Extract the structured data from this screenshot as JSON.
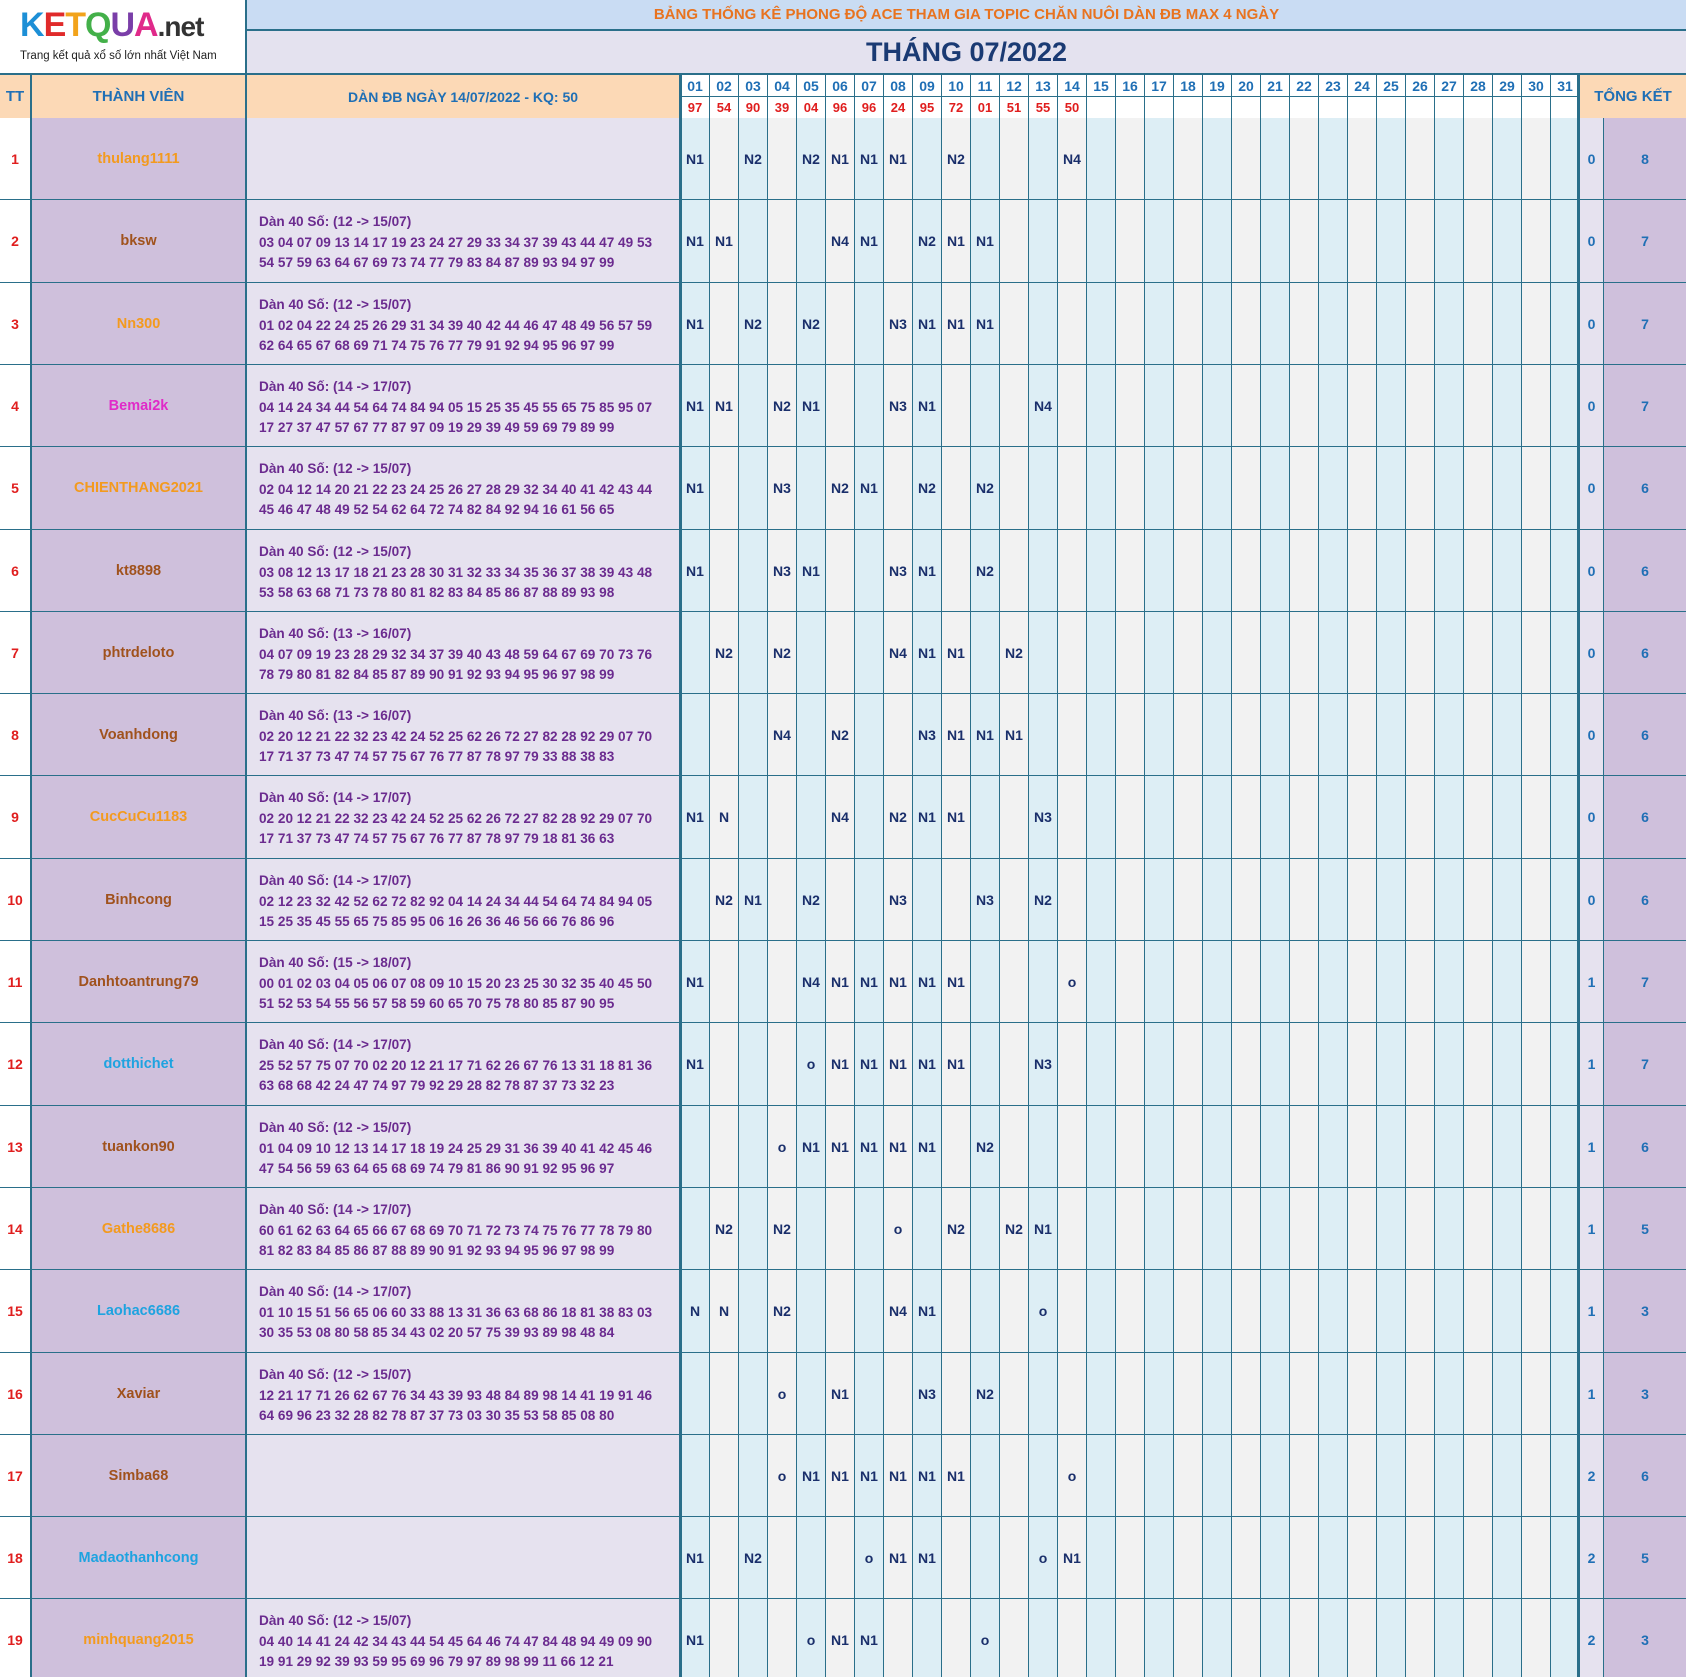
{
  "logo": {
    "letters": [
      "K",
      "E",
      "T",
      "Q",
      "U",
      "A"
    ],
    "letter_colors": [
      "#1d8fd6",
      "#e02a2a",
      "#f2a31b",
      "#43b049",
      "#7a3ea8",
      "#e02a8a"
    ],
    "suffix": ".net",
    "tagline": "Trang kết quả xổ số lớn nhất Việt Nam"
  },
  "title": "BẢNG THỐNG KÊ PHONG ĐỘ ACE THAM GIA TOPIC CHĂN NUÔI DÀN ĐB MAX 4 NGÀY",
  "month": "THÁNG 07/2022",
  "headers": {
    "tt": "TT",
    "member": "THÀNH VIÊN",
    "dan": "DÀN ĐB NGÀY 14/07/2022 - KQ: 50",
    "total": "TỔNG KẾT"
  },
  "days": [
    "01",
    "02",
    "03",
    "04",
    "05",
    "06",
    "07",
    "08",
    "09",
    "10",
    "11",
    "12",
    "13",
    "14",
    "15",
    "16",
    "17",
    "18",
    "19",
    "20",
    "21",
    "22",
    "23",
    "24",
    "25",
    "26",
    "27",
    "28",
    "29",
    "30",
    "31"
  ],
  "results": [
    "97",
    "54",
    "90",
    "39",
    "04",
    "96",
    "96",
    "24",
    "95",
    "72",
    "01",
    "51",
    "55",
    "50",
    "",
    "",
    "",
    "",
    "",
    "",
    "",
    "",
    "",
    "",
    "",
    "",
    "",
    "",
    "",
    "",
    ""
  ],
  "rows": [
    {
      "tt": "1",
      "name": "thulang1111",
      "color": "#f39a1e",
      "dan_title": "",
      "dan1": "",
      "dan2": "",
      "days": [
        "N1",
        "",
        "N2",
        "",
        "N2",
        "N1",
        "N1",
        "N1",
        "",
        "N2",
        "",
        "",
        "",
        "N4"
      ],
      "t1": "0",
      "t2": "8"
    },
    {
      "tt": "2",
      "name": "bksw",
      "color": "#a0521d",
      "dan_title": "Dàn 40 Số: (12 -> 15/07)",
      "dan1": "03 04 07 09 13 14 17 19 23 24 27 29 33 34 37 39 43 44 47 49 53",
      "dan2": "54 57 59 63 64 67 69 73 74 77 79 83 84 87 89 93 94 97 99",
      "days": [
        "N1",
        "N1",
        "",
        "",
        "",
        "N4",
        "N1",
        "",
        "N2",
        "N1",
        "N1",
        "",
        "",
        ""
      ],
      "t1": "0",
      "t2": "7"
    },
    {
      "tt": "3",
      "name": "Nn300",
      "color": "#f39a1e",
      "dan_title": "Dàn 40 Số: (12 -> 15/07)",
      "dan1": "01 02 04 22 24 25 26 29 31 34 39 40 42 44 46 47 48 49 56 57 59",
      "dan2": "62 64 65 67 68 69 71 74 75 76 77 79 91 92 94 95 96 97 99",
      "days": [
        "N1",
        "",
        "N2",
        "",
        "N2",
        "",
        "",
        "N3",
        "N1",
        "N1",
        "N1",
        "",
        "",
        ""
      ],
      "t1": "0",
      "t2": "7"
    },
    {
      "tt": "4",
      "name": "Bemai2k",
      "color": "#e02ac8",
      "dan_title": "Dàn 40 Số: (14 -> 17/07)",
      "dan1": "04 14 24 34 44 54 64 74 84 94 05 15 25 35 45 55 65 75 85 95 07",
      "dan2": "17 27 37 47 57 67 77 87 97 09 19 29 39 49 59 69 79 89 99",
      "days": [
        "N1",
        "N1",
        "",
        "N2",
        "N1",
        "",
        "",
        "N3",
        "N1",
        "",
        "",
        "",
        "N4",
        ""
      ],
      "t1": "0",
      "t2": "7"
    },
    {
      "tt": "5",
      "name": "CHIENTHANG2021",
      "color": "#f39a1e",
      "dan_title": "Dàn 40 Số: (12 -> 15/07)",
      "dan1": "02 04 12 14 20 21 22 23 24 25 26 27 28 29 32 34 40 41 42 43 44",
      "dan2": "45 46 47 48 49 52 54 62 64 72 74 82 84 92 94 16 61 56 65",
      "days": [
        "N1",
        "",
        "",
        "N3",
        "",
        "N2",
        "N1",
        "",
        "N2",
        "",
        "N2",
        "",
        "",
        ""
      ],
      "t1": "0",
      "t2": "6"
    },
    {
      "tt": "6",
      "name": "kt8898",
      "color": "#a0521d",
      "dan_title": "Dàn 40 Số: (12 -> 15/07)",
      "dan1": "03 08 12 13 17 18 21 23 28 30 31 32 33 34 35 36 37 38 39 43 48",
      "dan2": "53 58 63 68 71 73 78 80 81 82 83 84 85 86 87 88 89 93 98",
      "days": [
        "N1",
        "",
        "",
        "N3",
        "N1",
        "",
        "",
        "N3",
        "N1",
        "",
        "N2",
        "",
        "",
        ""
      ],
      "t1": "0",
      "t2": "6"
    },
    {
      "tt": "7",
      "name": "phtrdeloto",
      "color": "#a0521d",
      "dan_title": "Dàn 40 Số: (13 -> 16/07)",
      "dan1": "04 07 09 19 23 28 29 32 34 37 39 40 43 48 59 64 67 69 70 73 76",
      "dan2": "78 79 80 81 82 84 85 87 89 90 91 92 93 94 95 96 97 98 99",
      "days": [
        "",
        "N2",
        "",
        "N2",
        "",
        "",
        "",
        "N4",
        "N1",
        "N1",
        "",
        "N2",
        "",
        ""
      ],
      "t1": "0",
      "t2": "6"
    },
    {
      "tt": "8",
      "name": "Voanhdong",
      "color": "#a0521d",
      "dan_title": "Dàn 40 Số: (13 -> 16/07)",
      "dan1": "02 20 12 21 22 32 23 42 24 52 25 62 26 72 27 82 28 92 29 07 70",
      "dan2": "17 71 37 73 47 74 57 75 67 76 77 87 78 97 79 33 88 38 83",
      "days": [
        "",
        "",
        "",
        "N4",
        "",
        "N2",
        "",
        "",
        "N3",
        "N1",
        "N1",
        "N1",
        "",
        ""
      ],
      "t1": "0",
      "t2": "6"
    },
    {
      "tt": "9",
      "name": "CucCuCu1183",
      "color": "#f39a1e",
      "dan_title": "Dàn 40 Số: (14 -> 17/07)",
      "dan1": "02 20 12 21 22 32 23 42 24 52 25 62 26 72 27 82 28 92 29 07 70",
      "dan2": "17 71 37 73 47 74 57 75 67 76 77 87 78 97 79 18 81 36 63",
      "days": [
        "N1",
        "N",
        "",
        "",
        "",
        "N4",
        "",
        "N2",
        "N1",
        "N1",
        "",
        "",
        "N3",
        ""
      ],
      "t1": "0",
      "t2": "6"
    },
    {
      "tt": "10",
      "name": "Binhcong",
      "color": "#a0521d",
      "dan_title": "Dàn 40 Số: (14 -> 17/07)",
      "dan1": "02 12 23 32 42 52 62 72 82 92 04 14 24 34 44 54 64 74 84 94 05",
      "dan2": "15 25 35 45 55 65 75 85 95 06 16 26 36 46 56 66 76 86 96",
      "days": [
        "",
        "N2",
        "N1",
        "",
        "N2",
        "",
        "",
        "N3",
        "",
        "",
        "N3",
        "",
        "N2",
        ""
      ],
      "t1": "0",
      "t2": "6"
    },
    {
      "tt": "11",
      "name": "Danhtoantrung79",
      "color": "#a0521d",
      "dan_title": "Dàn 40 Số: (15 -> 18/07)",
      "dan1": "00 01 02 03 04 05 06 07 08 09 10 15 20 23 25 30 32 35 40 45 50",
      "dan2": "51 52 53 54 55 56 57 58 59 60 65 70 75 78 80 85 87 90 95",
      "days": [
        "N1",
        "",
        "",
        "",
        "N4",
        "N1",
        "N1",
        "N1",
        "N1",
        "N1",
        "",
        "",
        "",
        "o"
      ],
      "t1": "1",
      "t2": "7"
    },
    {
      "tt": "12",
      "name": "dotthichet",
      "color": "#1ea3e0",
      "dan_title": "Dàn 40 Số: (14 -> 17/07)",
      "dan1": "25 52 57 75 07 70 02 20 12 21 17 71 62 26 67 76 13 31 18 81 36",
      "dan2": "63 68 68 42 24 47 74 97 79 92 29 28 82 78 87 37 73 32 23",
      "days": [
        "N1",
        "",
        "",
        "",
        "o",
        "N1",
        "N1",
        "N1",
        "N1",
        "N1",
        "",
        "",
        "N3",
        ""
      ],
      "t1": "1",
      "t2": "7"
    },
    {
      "tt": "13",
      "name": "tuankon90",
      "color": "#a0521d",
      "dan_title": "Dàn 40 Số: (12 -> 15/07)",
      "dan1": "01 04 09 10 12 13 14 17 18 19 24 25 29 31 36 39 40 41 42 45 46",
      "dan2": "47 54 56 59 63 64 65 68 69 74 79 81 86 90 91 92 95 96 97",
      "days": [
        "",
        "",
        "",
        "o",
        "N1",
        "N1",
        "N1",
        "N1",
        "N1",
        "",
        "N2",
        "",
        "",
        ""
      ],
      "t1": "1",
      "t2": "6"
    },
    {
      "tt": "14",
      "name": "Gathe8686",
      "color": "#f39a1e",
      "dan_title": "Dàn 40 Số: (14 -> 17/07)",
      "dan1": "60 61 62 63 64 65 66 67 68 69 70 71 72 73 74 75 76 77 78 79 80",
      "dan2": "81 82 83 84 85 86 87 88 89 90 91 92 93 94 95 96 97 98 99",
      "days": [
        "",
        "N2",
        "",
        "N2",
        "",
        "",
        "",
        "o",
        "",
        "N2",
        "",
        "N2",
        "N1",
        ""
      ],
      "t1": "1",
      "t2": "5"
    },
    {
      "tt": "15",
      "name": "Laohac6686",
      "color": "#1ea3e0",
      "dan_title": "Dàn 40 Số: (14 -> 17/07)",
      "dan1": "01 10 15 51 56 65 06 60 33 88 13 31 36 63 68 86 18 81 38 83 03",
      "dan2": "30 35 53 08 80 58 85 34 43 02 20 57 75 39 93 89 98 48 84",
      "days": [
        "N",
        "N",
        "",
        "N2",
        "",
        "",
        "",
        "N4",
        "N1",
        "",
        "",
        "",
        "o",
        ""
      ],
      "t1": "1",
      "t2": "3"
    },
    {
      "tt": "16",
      "name": "Xaviar",
      "color": "#a0521d",
      "dan_title": "Dàn 40 Số: (12 -> 15/07)",
      "dan1": "12 21 17 71 26 62 67 76 34 43 39 93 48 84 89 98 14 41 19 91 46",
      "dan2": "64 69 96 23 32 28 82 78 87 37 73 03 30 35 53 58 85 08 80",
      "days": [
        "",
        "",
        "",
        "o",
        "",
        "N1",
        "",
        "",
        "N3",
        "",
        "N2",
        "",
        "",
        ""
      ],
      "t1": "1",
      "t2": "3"
    },
    {
      "tt": "17",
      "name": "Simba68",
      "color": "#a0521d",
      "dan_title": "",
      "dan1": "",
      "dan2": "",
      "days": [
        "",
        "",
        "",
        "o",
        "N1",
        "N1",
        "N1",
        "N1",
        "N1",
        "N1",
        "",
        "",
        "",
        "o"
      ],
      "t1": "2",
      "t2": "6"
    },
    {
      "tt": "18",
      "name": "Madaothanhcong",
      "color": "#1ea3e0",
      "dan_title": "",
      "dan1": "",
      "dan2": "",
      "days": [
        "N1",
        "",
        "N2",
        "",
        "",
        "",
        "o",
        "N1",
        "N1",
        "",
        "",
        "",
        "o",
        "N1"
      ],
      "t1": "2",
      "t2": "5"
    },
    {
      "tt": "19",
      "name": "minhquang2015",
      "color": "#f39a1e",
      "dan_title": "Dàn 40 Số: (12 -> 15/07)",
      "dan1": "04 40 14 41 24 42 34 43 44 54 45 64 46 74 47 84 48 94 49 09 90",
      "dan2": "19 91 29 92 39 93 59 95 69 96 79 97 89 98 99 11 66 12 21",
      "days": [
        "N1",
        "",
        "",
        "",
        "o",
        "N1",
        "N1",
        "",
        "",
        "",
        "o",
        "",
        "",
        ""
      ],
      "t1": "2",
      "t2": "3"
    }
  ]
}
